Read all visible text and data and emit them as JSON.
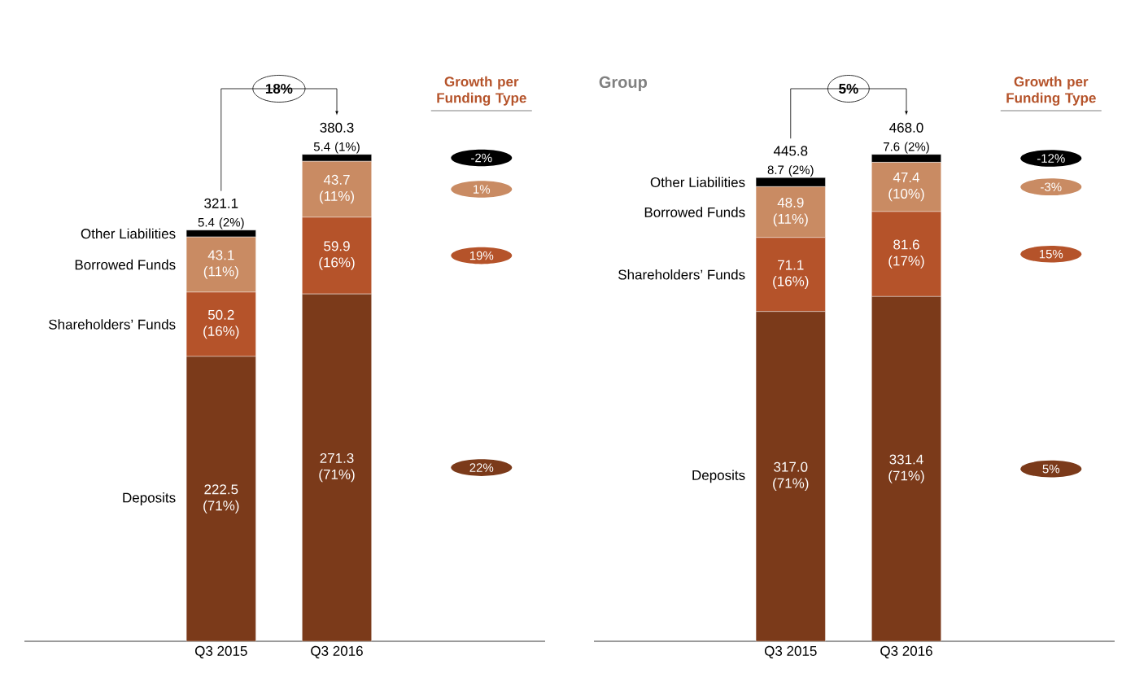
{
  "chart_data": [
    {
      "type": "bar",
      "stacked": true,
      "categories": [
        "Q3 2015",
        "Q3 2016"
      ],
      "tick_labels": "x",
      "series": [
        {
          "name": "Deposits",
          "color": "#7b3a1a",
          "values": [
            222.5,
            271.3
          ],
          "value_labels": [
            "222.5 (71%)",
            "271.3 (71%)"
          ]
        },
        {
          "name": "Shareholders’ Funds",
          "color": "#b5532a",
          "values": [
            50.2,
            59.9
          ],
          "value_labels": [
            "50.2 (16%)",
            "59.9 (16%)"
          ]
        },
        {
          "name": "Borrowed Funds",
          "color": "#c98b63",
          "values": [
            43.1,
            43.7
          ],
          "value_labels": [
            "43.1 (11%)",
            "43.7 (11%)"
          ]
        },
        {
          "name": "Other Liabilities",
          "color": "#000000",
          "values": [
            5.4,
            5.4
          ],
          "value_labels": [
            "5.4 (2%)",
            "5.4 (1%)"
          ]
        }
      ],
      "totals": [
        "321.1",
        "380.3"
      ],
      "annotations": [
        "18%",
        "Growth per Funding Type",
        "22%",
        "19%",
        "1%",
        "-2%"
      ]
    },
    {
      "type": "bar",
      "stacked": true,
      "title": "Group",
      "categories": [
        "Q3 2015",
        "Q3 2016"
      ],
      "tick_labels": "x",
      "series": [
        {
          "name": "Deposits",
          "color": "#7b3a1a",
          "values": [
            317.0,
            331.4
          ],
          "value_labels": [
            "317.0 (71%)",
            "331.4 (71%)"
          ]
        },
        {
          "name": "Shareholders’ Funds",
          "color": "#b5532a",
          "values": [
            71.1,
            81.6
          ],
          "value_labels": [
            "71.1 (16%)",
            "81.6 (17%)"
          ]
        },
        {
          "name": "Borrowed Funds",
          "color": "#c98b63",
          "values": [
            48.9,
            47.4
          ],
          "value_labels": [
            "48.9 (11%)",
            "47.4 (10%)"
          ]
        },
        {
          "name": "Other Liabilities",
          "color": "#000000",
          "values": [
            8.7,
            7.6
          ],
          "value_labels": [
            "8.7 (2%)",
            "7.6 (2%)"
          ]
        }
      ],
      "totals": [
        "445.8",
        "468.0"
      ],
      "annotations": [
        "5%",
        "Growth per Funding Type",
        "5%",
        "15%",
        "-3%",
        "-12%"
      ]
    }
  ]
}
